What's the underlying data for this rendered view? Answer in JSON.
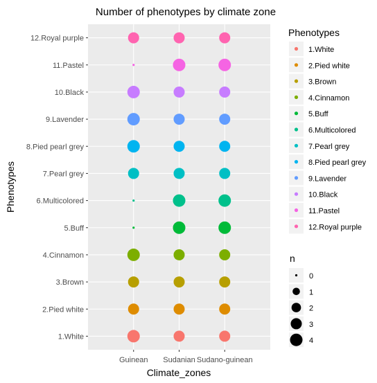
{
  "chart_data": {
    "type": "scatter",
    "title": "Number of phenotypes by climate  zone",
    "xlabel": "Climate_zones",
    "ylabel": "Phenotypes",
    "x_categories": [
      "Guinean",
      "Sudanian",
      "Sudano-guinean"
    ],
    "y_categories": [
      "1.White",
      "2.Pied white",
      "3.Brown",
      "4.Cinnamon",
      "5.Buff",
      "6.Multicolored",
      "7.Pearl grey",
      "8.Pied pearl grey",
      "9.Lavender",
      "10.Black",
      "11.Pastel",
      "12.Royal purple"
    ],
    "values": [
      [
        4,
        3,
        3
      ],
      [
        3,
        3,
        3
      ],
      [
        3,
        3,
        3
      ],
      [
        4,
        3,
        3
      ],
      [
        0,
        4,
        4
      ],
      [
        0,
        4,
        4
      ],
      [
        3,
        3,
        3
      ],
      [
        4,
        3,
        3
      ],
      [
        4,
        3,
        3
      ],
      [
        4,
        3,
        3
      ],
      [
        0,
        4,
        4
      ],
      [
        3,
        3,
        3
      ]
    ],
    "colors": [
      "#F8766D",
      "#DE8C00",
      "#B79F00",
      "#7CAE00",
      "#00BA38",
      "#00C08B",
      "#00BFC4",
      "#00B4F0",
      "#619CFF",
      "#C77CFF",
      "#F564E3",
      "#FF64B0"
    ],
    "color_legend": {
      "title": "Phenotypes",
      "labels": [
        "1.White",
        "2.Pied white",
        "3.Brown",
        "4.Cinnamon",
        "5.Buff",
        "6.Multicolored",
        "7.Pearl grey",
        "8.Pied pearl grey",
        "9.Lavender",
        "10.Black",
        "11.Pastel",
        "12.Royal purple"
      ]
    },
    "size_legend": {
      "title": "n",
      "values": [
        0,
        1,
        2,
        3,
        4
      ]
    },
    "grid": true,
    "legend_position": "right"
  }
}
